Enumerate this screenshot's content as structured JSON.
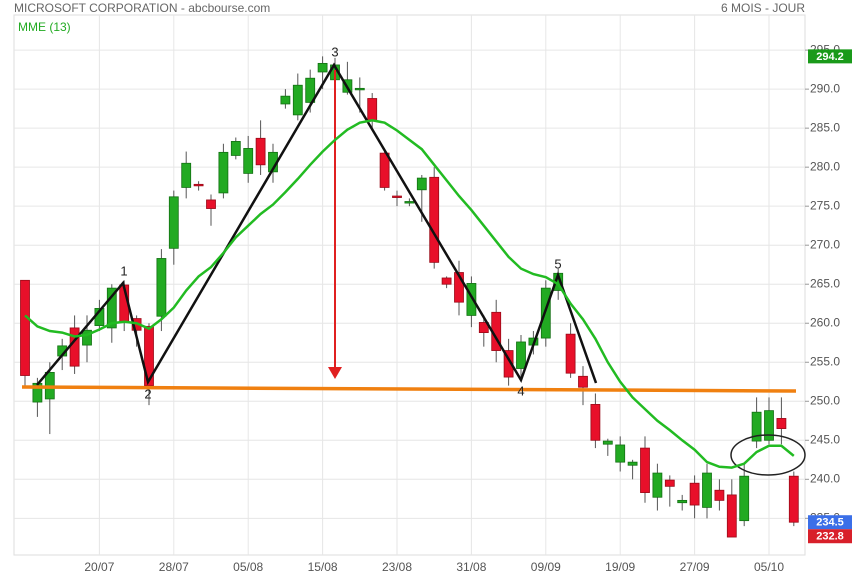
{
  "chart_data": {
    "type": "candlestick",
    "title": "MICROSOFT CORPORATION - abcbourse.com",
    "subtitle": "6 MOIS - JOUR",
    "categories": [
      null,
      null,
      null,
      null,
      null,
      null,
      "20/07",
      null,
      null,
      null,
      null,
      null,
      "28/07",
      null,
      null,
      null,
      null,
      null,
      "05/08",
      null,
      null,
      null,
      null,
      null,
      "15/08",
      null,
      null,
      null,
      null,
      null,
      "23/08",
      null,
      null,
      null,
      null,
      null,
      "31/08",
      null,
      null,
      null,
      null,
      null,
      "09/09",
      null,
      null,
      null,
      null,
      null,
      "19/09",
      null,
      null,
      null,
      null,
      null,
      "27/09",
      null,
      null,
      null,
      null,
      null,
      "05/10",
      null,
      null
    ],
    "open": [
      265.5,
      249.9,
      250.3,
      255.8,
      259.4,
      257.2,
      259.7,
      259.4,
      264.9,
      260.6,
      259.6,
      260.9,
      269.6,
      277.4,
      277.8,
      275.8,
      276.7,
      281.5,
      279.2,
      283.7,
      279.4,
      288.1,
      286.7,
      288.3,
      292.2,
      291.2,
      289.6,
      290.0,
      288.8,
      281.8,
      276.3,
      275.4,
      277.1,
      278.7,
      265.8,
      266.5,
      261.0,
      260.1,
      261.4,
      256.5,
      254.2,
      257.2,
      258.1,
      264.2,
      258.6,
      253.2,
      249.6,
      244.5,
      242.2,
      241.8,
      244.0,
      237.7,
      239.9,
      237.0,
      239.5,
      236.4,
      238.6,
      238.0,
      234.7,
      244.9,
      245.0,
      247.8,
      240.4
    ],
    "high": [
      265.5,
      253.0,
      255.0,
      258.0,
      261.0,
      261.0,
      263.0,
      265.0,
      265.5,
      261.0,
      260.0,
      269.5,
      277.0,
      282.0,
      278.2,
      276.5,
      283.0,
      283.8,
      284.0,
      286.0,
      283.0,
      290.0,
      292.0,
      292.5,
      294.2,
      294.0,
      293.5,
      291.5,
      289.5,
      282.0,
      277.0,
      276.0,
      279.0,
      280.0,
      266.0,
      268.0,
      266.0,
      261.0,
      263.0,
      258.0,
      258.5,
      259.0,
      265.5,
      267.0,
      260.0,
      254.5,
      251.0,
      245.2,
      245.5,
      242.5,
      245.5,
      242.0,
      240.5,
      238.0,
      240.5,
      242.0,
      240.0,
      240.0,
      242.0,
      250.5,
      250.5,
      250.5,
      241.0
    ],
    "low": [
      252.0,
      248.0,
      245.8,
      254.0,
      253.5,
      255.0,
      259.0,
      257.5,
      259.0,
      257.0,
      249.5,
      259.0,
      267.5,
      276.0,
      277.0,
      272.5,
      276.0,
      281.0,
      278.0,
      279.0,
      278.0,
      287.5,
      286.0,
      287.0,
      290.0,
      290.5,
      289.3,
      287.0,
      285.0,
      277.0,
      275.0,
      275.0,
      273.0,
      267.0,
      264.5,
      261.0,
      259.5,
      257.0,
      255.0,
      252.0,
      252.5,
      256.0,
      257.0,
      263.0,
      253.0,
      249.5,
      244.0,
      243.0,
      241.0,
      240.0,
      237.0,
      236.0,
      236.5,
      236.0,
      235.0,
      235.0,
      236.0,
      232.8,
      234.0,
      244.0,
      244.5,
      244.5,
      234.0
    ],
    "close": [
      253.3,
      252.3,
      253.7,
      257.1,
      254.5,
      259.1,
      261.9,
      264.5,
      260.1,
      259.1,
      252.0,
      268.3,
      276.2,
      280.5,
      277.7,
      274.7,
      281.9,
      283.3,
      282.4,
      280.3,
      281.9,
      289.1,
      290.5,
      291.4,
      293.3,
      293.1,
      291.2,
      290.1,
      286.0,
      277.4,
      276.2,
      275.6,
      278.6,
      267.8,
      265.0,
      262.7,
      265.1,
      258.8,
      256.5,
      253.1,
      257.6,
      258.1,
      264.5,
      266.4,
      253.6,
      251.8,
      245.0,
      244.9,
      244.4,
      242.2,
      238.3,
      240.8,
      239.1,
      237.3,
      236.7,
      240.8,
      237.3,
      232.6,
      240.4,
      248.6,
      248.8,
      246.5,
      234.5
    ],
    "up_color": "#22aa22",
    "down_color": "#e8102a",
    "overlays": [
      {
        "name": "MME (13)",
        "color": "#22bb22",
        "values": [
          261.0,
          259.6,
          259.0,
          258.8,
          258.3,
          258.5,
          259.2,
          260.0,
          260.2,
          260.0,
          259.3,
          260.5,
          262.0,
          264.2,
          266.0,
          267.2,
          269.0,
          271.0,
          272.5,
          274.0,
          275.2,
          276.8,
          278.5,
          280.3,
          282.0,
          283.5,
          284.8,
          285.7,
          286.0,
          285.7,
          284.7,
          283.5,
          282.3,
          280.3,
          278.3,
          276.3,
          274.5,
          272.5,
          270.5,
          268.5,
          267.0,
          266.3,
          265.9,
          265.0,
          262.5,
          260.5,
          258.0,
          255.0,
          252.5,
          250.5,
          249.0,
          247.5,
          246.3,
          245.0,
          243.8,
          242.2,
          241.6,
          241.5,
          242.0,
          243.5,
          244.3,
          244.3,
          243.0
        ]
      }
    ],
    "pattern_labels": [
      "1",
      "2",
      "3",
      "4",
      "5"
    ],
    "price_labels": [
      {
        "value": 294.2,
        "label": "294.2",
        "color": "#1a9a1a"
      },
      {
        "value": 234.5,
        "label": "234.5",
        "color": "#3b6fe8"
      },
      {
        "value": 232.8,
        "label": "232.8",
        "color": "#d8202a"
      }
    ],
    "ylim": [
      230.3,
      299.5
    ],
    "yticks": [
      {
        "value": 235,
        "label": "235.0"
      },
      {
        "value": 240,
        "label": "240.0"
      },
      {
        "value": 245,
        "label": "245.0"
      },
      {
        "value": 250,
        "label": "250.0"
      },
      {
        "value": 255,
        "label": "255.0"
      },
      {
        "value": 260,
        "label": "260.0"
      },
      {
        "value": 265,
        "label": "265.0"
      },
      {
        "value": 270,
        "label": "270.0"
      },
      {
        "value": 275,
        "label": "275.0"
      },
      {
        "value": 280,
        "label": "280.0"
      },
      {
        "value": 285,
        "label": "285.0"
      },
      {
        "value": 290,
        "label": "290.0"
      },
      {
        "value": 295,
        "label": "295.0"
      }
    ],
    "grid": true
  }
}
